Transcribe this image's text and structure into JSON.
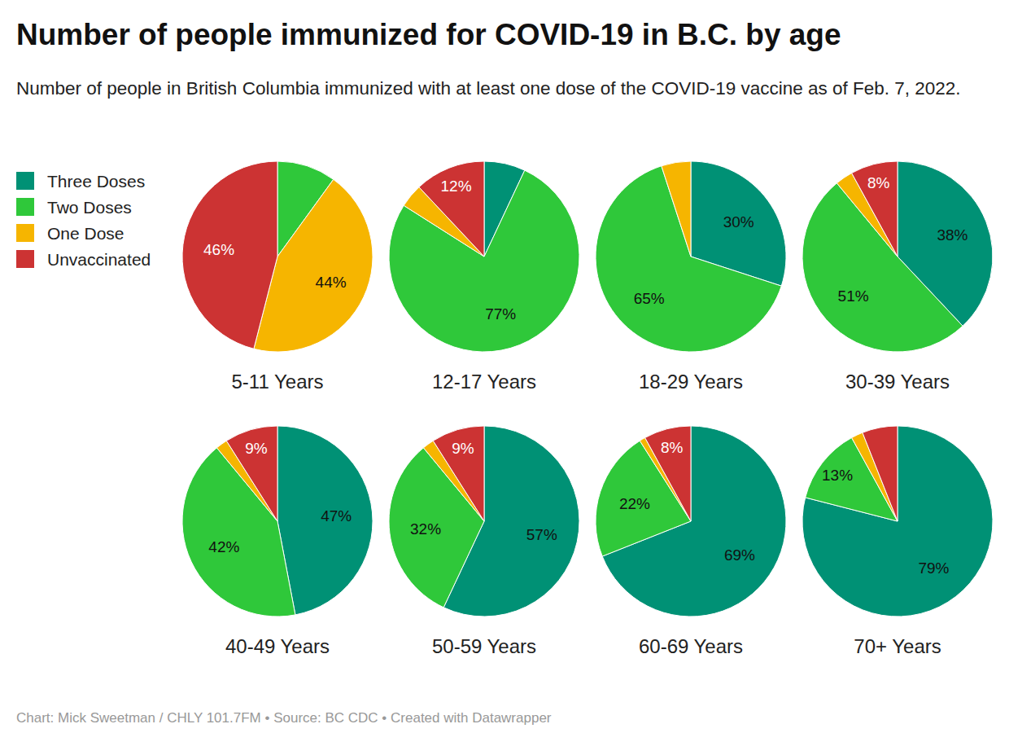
{
  "chart_data": {
    "type": "pie",
    "title": "Number of people immunized for COVID-19 in B.C. by age",
    "subtitle": "Number of people in British Columbia immunized with at least one dose of the COVID-19 vaccine as of Feb. 7, 2022.",
    "caption": "Chart: Mick Sweetman / CHLY 101.7FM • Source: BC CDC • Created with Datawrapper",
    "categories": [
      "Three Doses",
      "Two Doses",
      "One Dose",
      "Unvaccinated"
    ],
    "colors": [
      "#009175",
      "#2fc83a",
      "#f6b500",
      "#cc3333"
    ],
    "legend": "top-left",
    "data_labels": true,
    "series": [
      {
        "name": "5-11 Years",
        "values": [
          0,
          10,
          44,
          46
        ],
        "value_labels": [
          null,
          null,
          "44%",
          "46%"
        ]
      },
      {
        "name": "12-17 Years",
        "values": [
          7,
          77,
          4,
          12
        ],
        "value_labels": [
          null,
          "77%",
          null,
          "12%"
        ]
      },
      {
        "name": "18-29 Years",
        "values": [
          30,
          65,
          5,
          0
        ],
        "value_labels": [
          "30%",
          "65%",
          null,
          null
        ]
      },
      {
        "name": "30-39 Years",
        "values": [
          38,
          51,
          3,
          8
        ],
        "value_labels": [
          "38%",
          "51%",
          null,
          "8%"
        ]
      },
      {
        "name": "40-49 Years",
        "values": [
          47,
          42,
          2,
          9
        ],
        "value_labels": [
          "47%",
          "42%",
          null,
          "9%"
        ]
      },
      {
        "name": "50-59 Years",
        "values": [
          57,
          32,
          2,
          9
        ],
        "value_labels": [
          "57%",
          "32%",
          null,
          "9%"
        ]
      },
      {
        "name": "60-69 Years",
        "values": [
          69,
          22,
          1,
          8
        ],
        "value_labels": [
          "69%",
          "22%",
          null,
          "8%"
        ]
      },
      {
        "name": "70+ Years",
        "values": [
          79,
          13,
          2,
          6
        ],
        "value_labels": [
          "79%",
          "13%",
          null,
          null
        ]
      }
    ]
  }
}
